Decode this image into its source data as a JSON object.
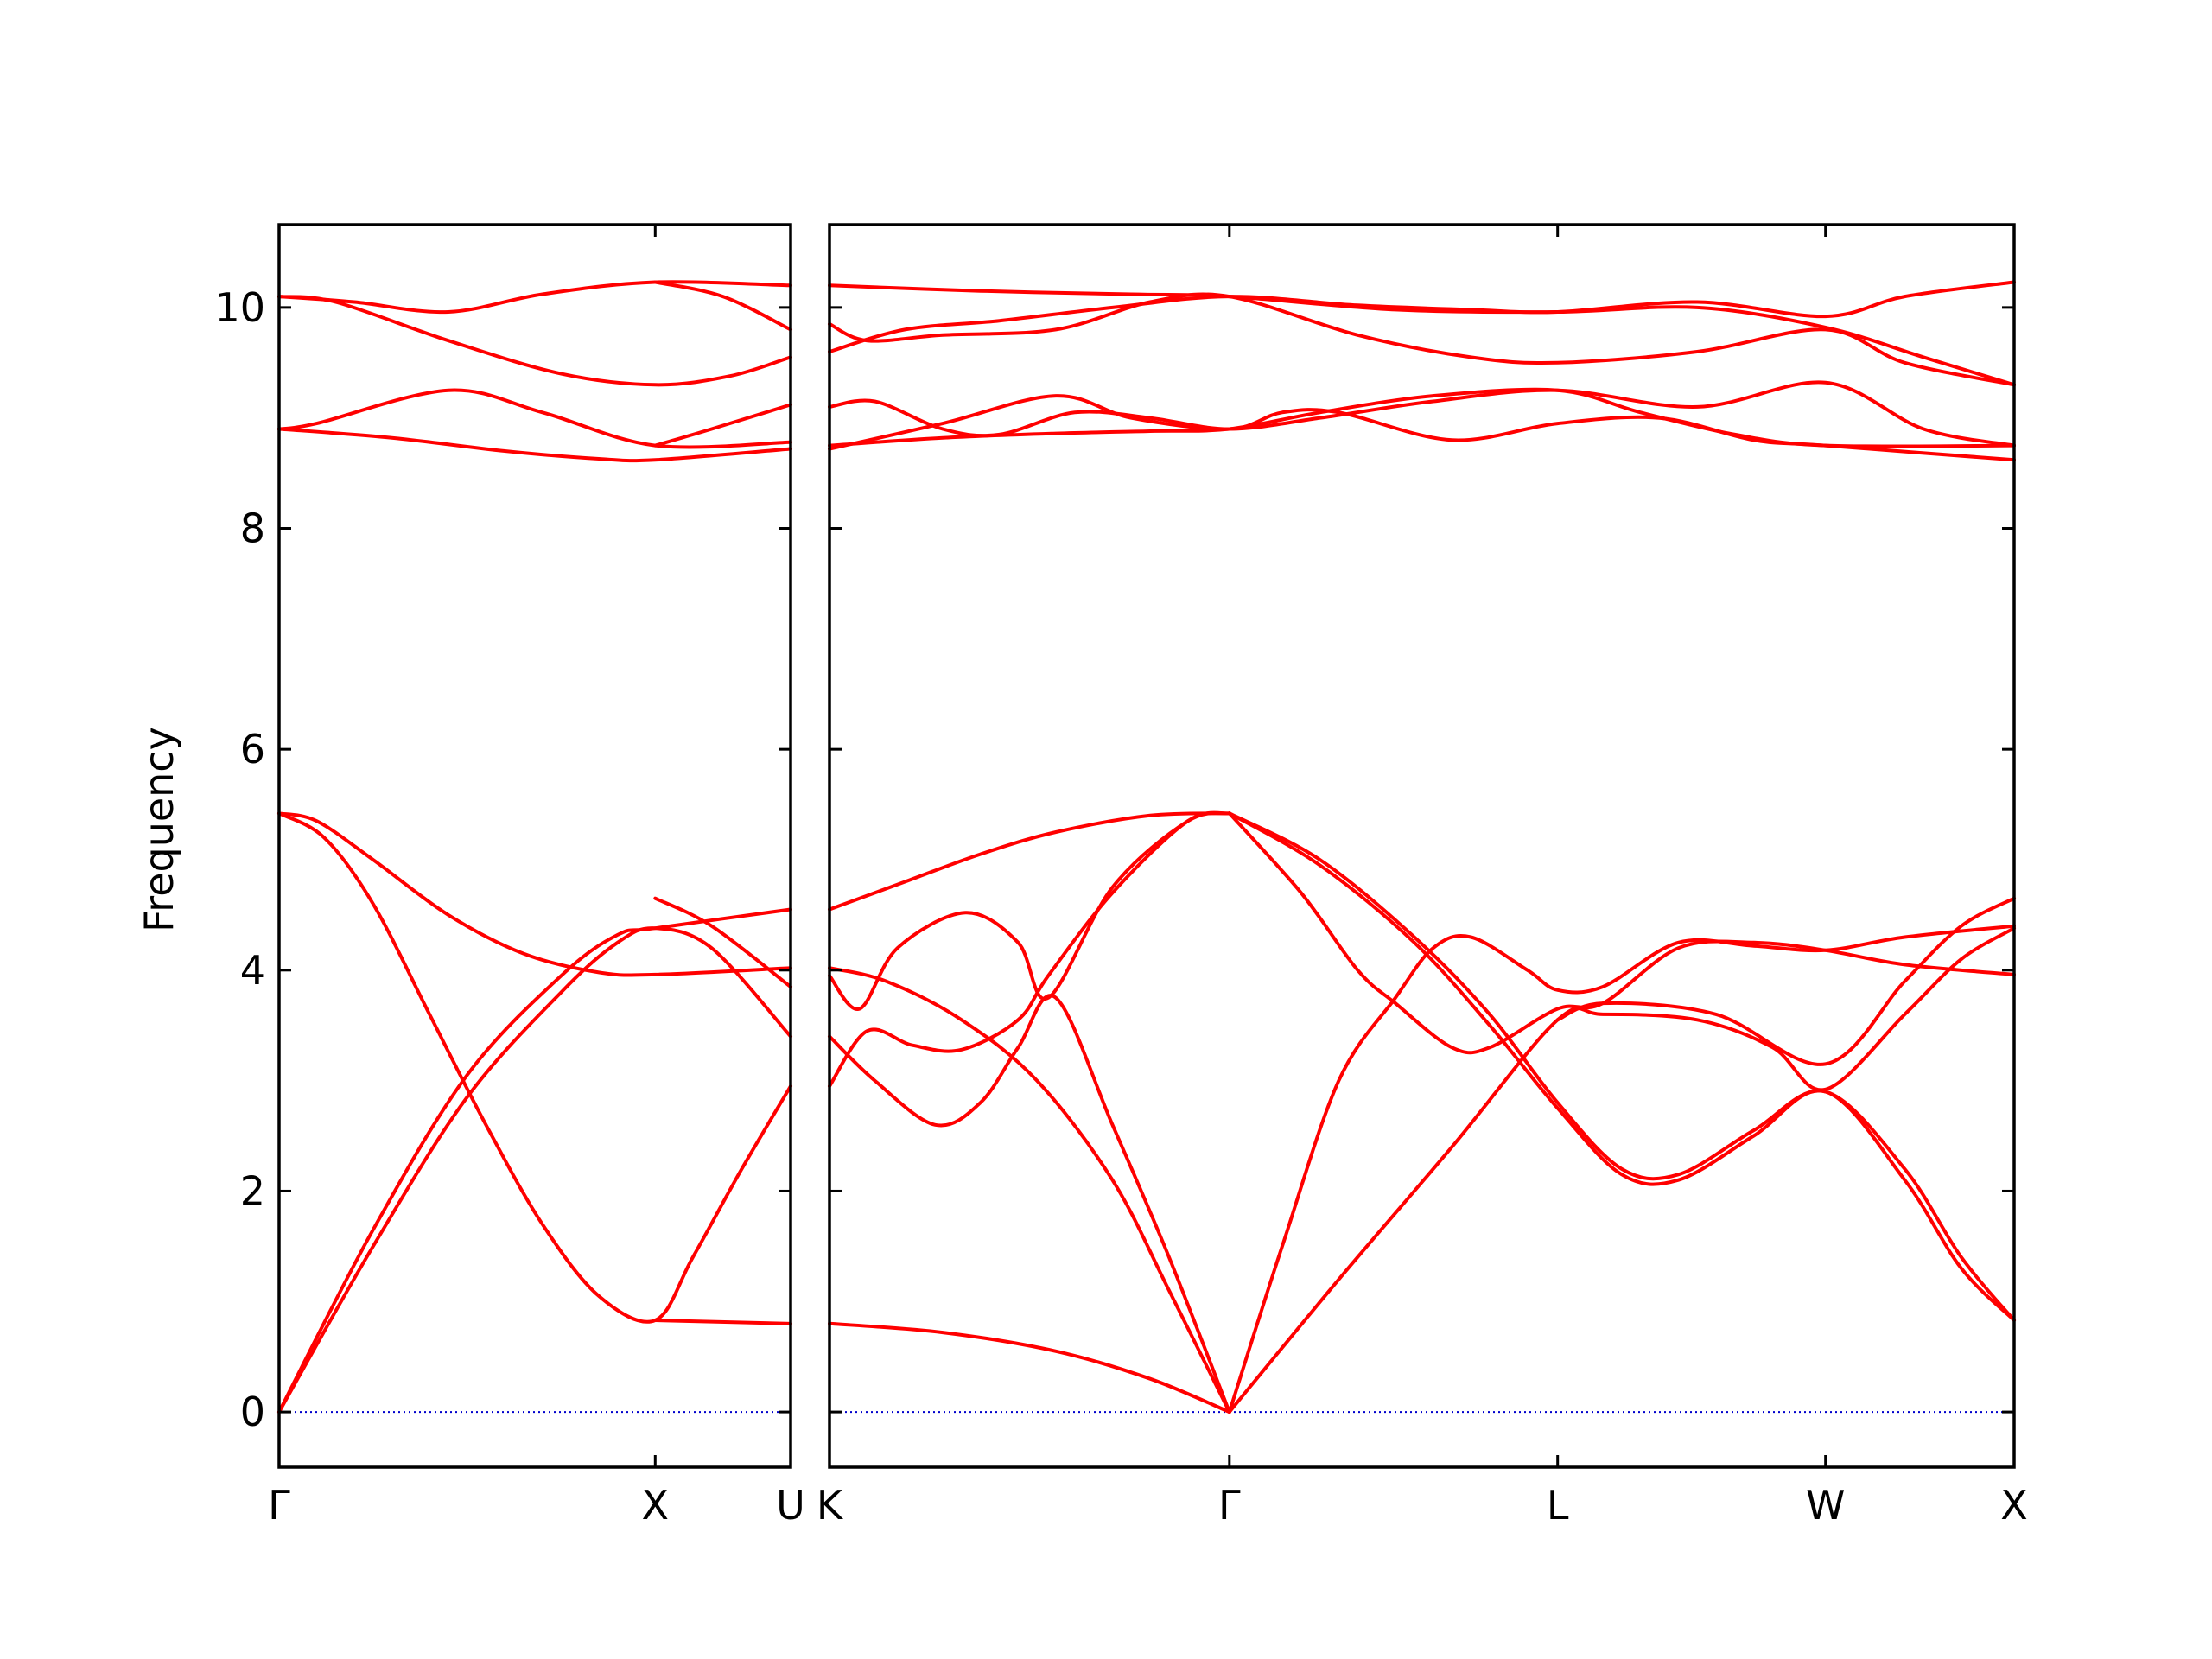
{
  "chart_data": {
    "type": "line",
    "ylabel": "Frequency",
    "ylim": [
      -0.5,
      10.75
    ],
    "yticks": [
      0,
      2,
      4,
      6,
      8,
      10
    ],
    "zero_line": {
      "style": "dotted",
      "color": "#0000cc"
    },
    "band_color": "#ff0000",
    "panels": [
      {
        "name": "panel-1",
        "xlim": [
          0,
          1.36
        ],
        "xticks": [
          {
            "x": 0,
            "label": "Γ"
          },
          {
            "x": 1.0,
            "label": "X"
          },
          {
            "x": 1.36,
            "label": "U"
          }
        ],
        "bands": [
          [
            [
              0,
              0
            ],
            [
              0.25,
              1.65
            ],
            [
              0.5,
              3.05
            ],
            [
              0.75,
              3.95
            ],
            [
              0.9,
              4.32
            ],
            [
              1.0,
              4.38
            ],
            [
              1.36,
              4.55
            ]
          ],
          [
            [
              0,
              0
            ],
            [
              0.25,
              1.5
            ],
            [
              0.5,
              2.85
            ],
            [
              0.75,
              3.8
            ],
            [
              0.9,
              4.25
            ],
            [
              1.0,
              4.38
            ],
            [
              1.15,
              4.2
            ],
            [
              1.36,
              3.4
            ]
          ],
          [
            [
              0,
              5.42
            ],
            [
              0.12,
              5.2
            ],
            [
              0.25,
              4.6
            ],
            [
              0.4,
              3.6
            ],
            [
              0.55,
              2.6
            ],
            [
              0.7,
              1.7
            ],
            [
              0.85,
              1.05
            ],
            [
              1.0,
              0.83
            ],
            [
              1.1,
              1.4
            ],
            [
              1.23,
              2.2
            ],
            [
              1.36,
              2.95
            ]
          ],
          [
            [
              0,
              5.42
            ],
            [
              0.1,
              5.35
            ],
            [
              0.25,
              5.0
            ],
            [
              0.45,
              4.5
            ],
            [
              0.65,
              4.15
            ],
            [
              0.85,
              3.98
            ],
            [
              1.0,
              3.96
            ],
            [
              1.36,
              4.02
            ]
          ],
          [
            [
              1.0,
              0.83
            ],
            [
              1.36,
              0.8
            ]
          ],
          [
            [
              1.0,
              4.65
            ],
            [
              1.15,
              4.4
            ],
            [
              1.36,
              3.85
            ]
          ],
          [
            [
              0,
              8.9
            ],
            [
              0.3,
              8.82
            ],
            [
              0.6,
              8.7
            ],
            [
              0.85,
              8.63
            ],
            [
              1.0,
              8.62
            ],
            [
              1.36,
              8.72
            ]
          ],
          [
            [
              0,
              8.9
            ],
            [
              0.1,
              8.95
            ],
            [
              0.45,
              9.25
            ],
            [
              0.7,
              9.05
            ],
            [
              1.0,
              8.75
            ],
            [
              1.36,
              8.78
            ]
          ],
          [
            [
              1.0,
              8.75
            ],
            [
              1.15,
              8.9
            ],
            [
              1.36,
              9.12
            ]
          ],
          [
            [
              0,
              10.1
            ],
            [
              0.15,
              10.05
            ],
            [
              0.45,
              9.7
            ],
            [
              0.75,
              9.4
            ],
            [
              1.0,
              9.3
            ],
            [
              1.2,
              9.38
            ],
            [
              1.36,
              9.55
            ]
          ],
          [
            [
              0,
              10.1
            ],
            [
              0.2,
              10.05
            ],
            [
              0.45,
              9.96
            ],
            [
              0.7,
              10.12
            ],
            [
              1.0,
              10.23
            ],
            [
              1.36,
              10.2
            ]
          ],
          [
            [
              1.0,
              10.23
            ],
            [
              1.18,
              10.1
            ],
            [
              1.36,
              9.8
            ]
          ]
        ]
      },
      {
        "name": "panel-2",
        "xlim": [
          0,
          3.14
        ],
        "xticks": [
          {
            "x": 0,
            "label": "K"
          },
          {
            "x": 1.06,
            "label": "Γ"
          },
          {
            "x": 1.93,
            "label": "L"
          },
          {
            "x": 2.64,
            "label": "W"
          },
          {
            "x": 3.14,
            "label": "X"
          }
        ],
        "bands": [
          [
            [
              0,
              0.8
            ],
            [
              0.3,
              0.72
            ],
            [
              0.6,
              0.55
            ],
            [
              0.85,
              0.3
            ],
            [
              1.06,
              0
            ]
          ],
          [
            [
              0,
              4.55
            ],
            [
              0.2,
              4.8
            ],
            [
              0.4,
              5.05
            ],
            [
              0.6,
              5.25
            ],
            [
              0.85,
              5.4
            ],
            [
              1.06,
              5.42
            ]
          ],
          [
            [
              0,
              4.02
            ],
            [
              0.15,
              3.9
            ],
            [
              0.35,
              3.55
            ],
            [
              0.55,
              3.0
            ],
            [
              0.75,
              2.1
            ],
            [
              0.9,
              1.1
            ],
            [
              1.06,
              0
            ]
          ],
          [
            [
              0,
              3.4
            ],
            [
              0.12,
              3.0
            ],
            [
              0.28,
              2.6
            ],
            [
              0.4,
              2.8
            ],
            [
              0.5,
              3.3
            ],
            [
              0.6,
              3.75
            ],
            [
              0.75,
              2.6
            ],
            [
              0.9,
              1.4
            ],
            [
              1.06,
              0
            ]
          ],
          [
            [
              0,
              2.95
            ],
            [
              0.1,
              3.45
            ],
            [
              0.22,
              3.32
            ],
            [
              0.35,
              3.28
            ],
            [
              0.5,
              3.55
            ],
            [
              0.58,
              3.95
            ],
            [
              0.75,
              4.7
            ],
            [
              0.95,
              5.35
            ],
            [
              1.06,
              5.42
            ]
          ],
          [
            [
              0,
              3.95
            ],
            [
              0.08,
              3.65
            ],
            [
              0.18,
              4.2
            ],
            [
              0.36,
              4.52
            ],
            [
              0.5,
              4.25
            ],
            [
              0.58,
              3.75
            ],
            [
              0.75,
              4.75
            ],
            [
              0.95,
              5.35
            ],
            [
              1.06,
              5.42
            ]
          ],
          [
            [
              1.06,
              0
            ],
            [
              1.2,
              1.5
            ],
            [
              1.35,
              3.0
            ],
            [
              1.5,
              3.75
            ],
            [
              1.6,
              4.2
            ],
            [
              1.7,
              4.3
            ],
            [
              1.85,
              4.0
            ],
            [
              1.93,
              3.82
            ],
            [
              2.05,
              3.85
            ],
            [
              2.25,
              4.25
            ],
            [
              2.45,
              4.22
            ],
            [
              2.64,
              4.18
            ],
            [
              2.85,
              4.3
            ],
            [
              3.14,
              4.4
            ]
          ],
          [
            [
              1.06,
              5.42
            ],
            [
              1.25,
              4.7
            ],
            [
              1.4,
              4.0
            ],
            [
              1.5,
              3.7
            ],
            [
              1.65,
              3.3
            ],
            [
              1.75,
              3.3
            ],
            [
              1.93,
              3.65
            ],
            [
              2.05,
              3.7
            ],
            [
              2.25,
              4.2
            ],
            [
              2.45,
              4.25
            ],
            [
              2.64,
              4.18
            ],
            [
              2.85,
              4.05
            ],
            [
              3.14,
              3.96
            ]
          ],
          [
            [
              1.06,
              5.42
            ],
            [
              1.3,
              5.0
            ],
            [
              1.55,
              4.3
            ],
            [
              1.75,
              3.6
            ],
            [
              1.93,
              2.8
            ],
            [
              2.1,
              2.2
            ],
            [
              2.25,
              2.15
            ],
            [
              2.45,
              2.55
            ],
            [
              2.64,
              2.9
            ],
            [
              2.85,
              2.2
            ],
            [
              3.0,
              1.4
            ],
            [
              3.14,
              0.83
            ]
          ],
          [
            [
              1.06,
              5.42
            ],
            [
              1.3,
              4.95
            ],
            [
              1.55,
              4.25
            ],
            [
              1.75,
              3.5
            ],
            [
              1.93,
              2.75
            ],
            [
              2.1,
              2.15
            ],
            [
              2.25,
              2.1
            ],
            [
              2.45,
              2.5
            ],
            [
              2.64,
              2.9
            ],
            [
              2.85,
              2.1
            ],
            [
              3.0,
              1.3
            ],
            [
              3.14,
              0.83
            ]
          ],
          [
            [
              1.06,
              0
            ],
            [
              1.35,
              1.2
            ],
            [
              1.65,
              2.4
            ],
            [
              1.93,
              3.55
            ],
            [
              2.05,
              3.6
            ],
            [
              2.3,
              3.55
            ],
            [
              2.5,
              3.3
            ],
            [
              2.64,
              2.92
            ],
            [
              2.85,
              3.6
            ],
            [
              3.0,
              4.1
            ],
            [
              3.14,
              4.38
            ]
          ],
          [
            [
              1.93,
              3.55
            ],
            [
              2.05,
              3.7
            ],
            [
              2.35,
              3.6
            ],
            [
              2.64,
              3.15
            ],
            [
              2.85,
              3.9
            ],
            [
              3.0,
              4.4
            ],
            [
              3.14,
              4.65
            ]
          ],
          [
            [
              0,
              8.75
            ],
            [
              0.3,
              8.82
            ],
            [
              0.6,
              8.86
            ],
            [
              0.85,
              8.88
            ],
            [
              1.06,
              8.9
            ],
            [
              1.3,
              9.05
            ],
            [
              1.6,
              9.2
            ],
            [
              1.93,
              9.25
            ],
            [
              2.15,
              9.05
            ],
            [
              2.4,
              8.85
            ],
            [
              2.64,
              8.75
            ],
            [
              3.14,
              8.75
            ]
          ],
          [
            [
              0,
              8.72
            ],
            [
              0.3,
              8.95
            ],
            [
              0.6,
              9.2
            ],
            [
              0.8,
              9.0
            ],
            [
              1.06,
              8.9
            ],
            [
              1.2,
              9.05
            ],
            [
              1.35,
              9.05
            ],
            [
              1.65,
              8.8
            ],
            [
              1.93,
              8.95
            ],
            [
              2.2,
              9.0
            ],
            [
              2.45,
              8.8
            ],
            [
              2.64,
              8.75
            ],
            [
              3.14,
              8.62
            ]
          ],
          [
            [
              0,
              9.1
            ],
            [
              0.12,
              9.15
            ],
            [
              0.3,
              8.9
            ],
            [
              0.45,
              8.85
            ],
            [
              0.65,
              9.05
            ],
            [
              0.85,
              9.0
            ],
            [
              1.06,
              8.9
            ],
            [
              1.3,
              9.0
            ],
            [
              1.6,
              9.15
            ],
            [
              1.93,
              9.25
            ],
            [
              2.3,
              9.1
            ],
            [
              2.64,
              9.32
            ],
            [
              2.9,
              8.9
            ],
            [
              3.14,
              8.75
            ]
          ],
          [
            [
              0,
              9.85
            ],
            [
              0.1,
              9.7
            ],
            [
              0.3,
              9.75
            ],
            [
              0.6,
              9.8
            ],
            [
              0.85,
              10.05
            ],
            [
              1.06,
              10.1
            ],
            [
              1.4,
              9.75
            ],
            [
              1.7,
              9.55
            ],
            [
              1.93,
              9.5
            ],
            [
              2.3,
              9.6
            ],
            [
              2.64,
              9.8
            ],
            [
              2.85,
              9.5
            ],
            [
              3.14,
              9.3
            ]
          ],
          [
            [
              0,
              9.6
            ],
            [
              0.2,
              9.8
            ],
            [
              0.45,
              9.88
            ],
            [
              0.75,
              10.0
            ],
            [
              1.06,
              10.1
            ],
            [
              1.4,
              10.02
            ],
            [
              1.7,
              9.98
            ],
            [
              1.93,
              9.96
            ],
            [
              2.3,
              10.05
            ],
            [
              2.64,
              9.92
            ],
            [
              2.85,
              10.1
            ],
            [
              3.14,
              10.23
            ]
          ],
          [
            [
              0,
              10.2
            ],
            [
              0.4,
              10.15
            ],
            [
              0.8,
              10.12
            ],
            [
              1.06,
              10.1
            ],
            [
              1.5,
              9.98
            ],
            [
              1.93,
              9.96
            ],
            [
              2.3,
              10.0
            ],
            [
              2.64,
              9.82
            ],
            [
              2.9,
              9.55
            ],
            [
              3.14,
              9.3
            ]
          ]
        ]
      }
    ]
  }
}
